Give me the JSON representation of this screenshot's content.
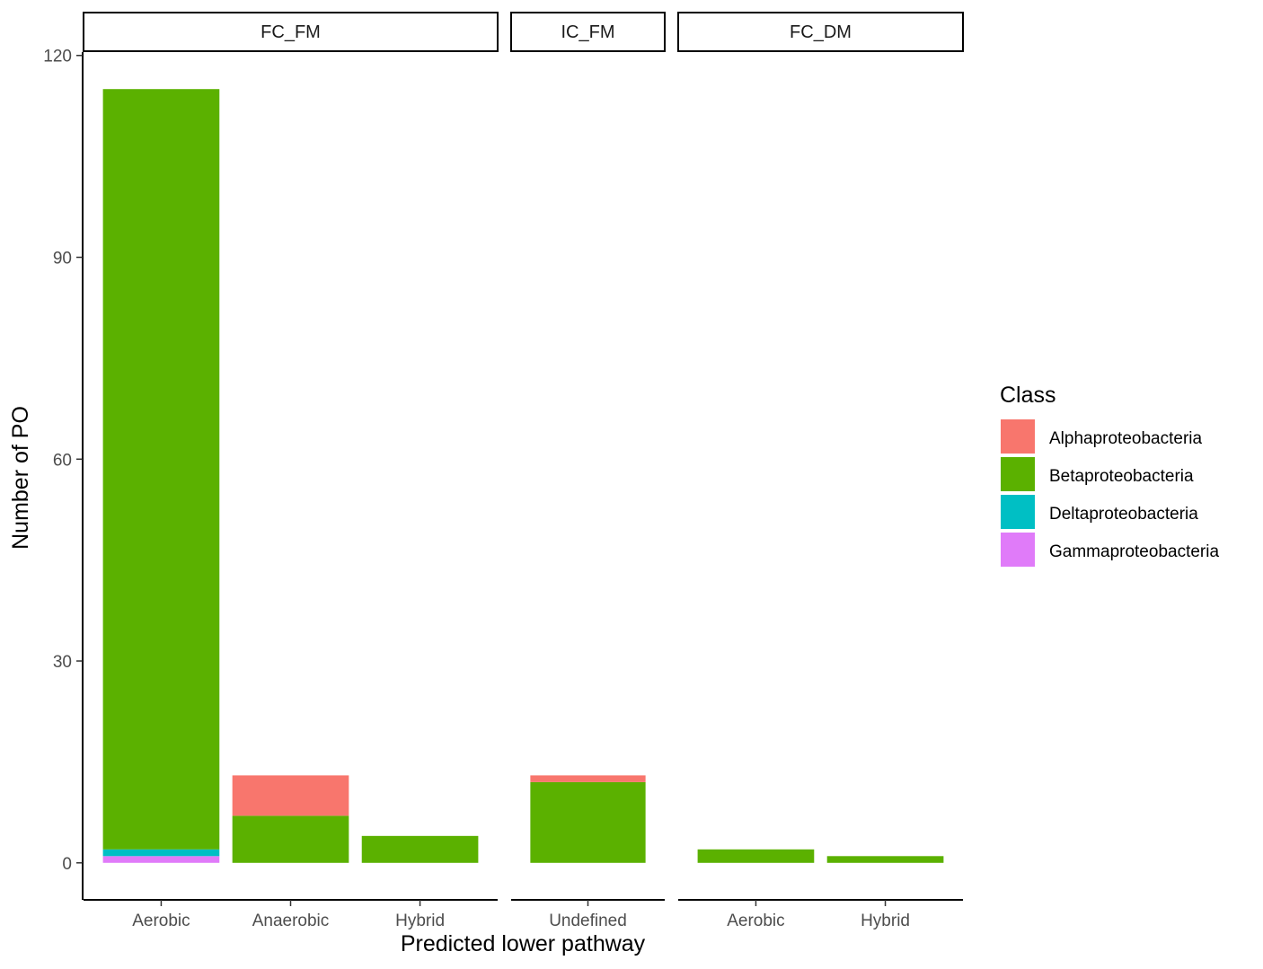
{
  "chart_data": {
    "type": "bar",
    "stacked": true,
    "xlabel": "Predicted lower pathway",
    "ylabel": "Number of PO",
    "ylim": [
      -5.5,
      120.5
    ],
    "yticks": [
      0,
      30,
      60,
      90,
      120
    ],
    "grid": false,
    "legend": {
      "title": "Class",
      "placement": "right",
      "entries": [
        "Alphaproteobacteria",
        "Betaproteobacteria",
        "Deltaproteobacteria",
        "Gammaproteobacteria"
      ]
    },
    "colors": {
      "Alphaproteobacteria": "#F8766D",
      "Betaproteobacteria": "#5BB100",
      "Deltaproteobacteria": "#00BFC4",
      "Gammaproteobacteria": "#E07BF9"
    },
    "stack_order": [
      "Gammaproteobacteria",
      "Deltaproteobacteria",
      "Betaproteobacteria",
      "Alphaproteobacteria"
    ],
    "facets": [
      {
        "label": "FC_FM",
        "categories": [
          "Aerobic",
          "Anaerobic",
          "Hybrid"
        ],
        "values": {
          "Aerobic": {
            "Gammaproteobacteria": 1,
            "Deltaproteobacteria": 1,
            "Betaproteobacteria": 113,
            "Alphaproteobacteria": 0
          },
          "Anaerobic": {
            "Gammaproteobacteria": 0,
            "Deltaproteobacteria": 0,
            "Betaproteobacteria": 7,
            "Alphaproteobacteria": 6
          },
          "Hybrid": {
            "Gammaproteobacteria": 0,
            "Deltaproteobacteria": 0,
            "Betaproteobacteria": 4,
            "Alphaproteobacteria": 0
          }
        }
      },
      {
        "label": "IC_FM",
        "categories": [
          "Undefined"
        ],
        "values": {
          "Undefined": {
            "Gammaproteobacteria": 0,
            "Deltaproteobacteria": 0,
            "Betaproteobacteria": 12,
            "Alphaproteobacteria": 1
          }
        }
      },
      {
        "label": "FC_DM",
        "categories": [
          "Aerobic",
          "Hybrid"
        ],
        "values": {
          "Aerobic": {
            "Gammaproteobacteria": 0,
            "Deltaproteobacteria": 0,
            "Betaproteobacteria": 2,
            "Alphaproteobacteria": 0
          },
          "Hybrid": {
            "Gammaproteobacteria": 0,
            "Deltaproteobacteria": 0,
            "Betaproteobacteria": 1,
            "Alphaproteobacteria": 0
          }
        }
      }
    ]
  }
}
